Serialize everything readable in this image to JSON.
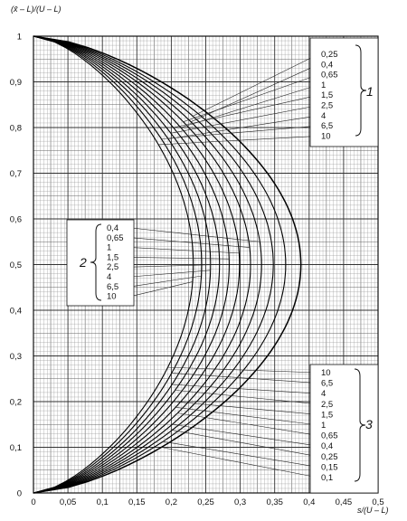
{
  "chart_data": {
    "type": "line",
    "xlabel": "s/(U – L)",
    "ylabel": "(x̄ – L)/(U – L)",
    "xlim": [
      0,
      0.5
    ],
    "ylim": [
      0,
      1
    ],
    "x_ticks": [
      "0",
      "0,05",
      "0,1",
      "0,15",
      "0,2",
      "0,25",
      "0,3",
      "0,35",
      "0,4",
      "0,45",
      "0,5"
    ],
    "y_ticks": [
      "0",
      "0,1",
      "0,2",
      "0,3",
      "0,4",
      "0,5",
      "0,6",
      "0,7",
      "0,8",
      "0,9",
      "1"
    ],
    "grid": true,
    "series": [
      {
        "name": "0,1",
        "peak_x": 0.378
      },
      {
        "name": "0,15",
        "peak_x": 0.356
      },
      {
        "name": "0,25",
        "peak_x": 0.338
      },
      {
        "name": "0,4",
        "peak_x": 0.321
      },
      {
        "name": "0,65",
        "peak_x": 0.305
      },
      {
        "name": "1",
        "peak_x": 0.289
      },
      {
        "name": "1,5",
        "peak_x": 0.274
      },
      {
        "name": "2,5",
        "peak_x": 0.26
      },
      {
        "name": "4",
        "peak_x": 0.247
      },
      {
        "name": "6,5",
        "peak_x": 0.234
      },
      {
        "name": "10",
        "peak_x": 0.222
      }
    ],
    "groups": [
      {
        "number": "1",
        "labels": [
          "0,25",
          "0,4",
          "0,65",
          "1",
          "1,5",
          "2,5",
          "4",
          "6,5",
          "10"
        ]
      },
      {
        "number": "2",
        "labels": [
          "0,4",
          "0,65",
          "1",
          "1,5",
          "2,5",
          "4",
          "6,5",
          "10"
        ]
      },
      {
        "number": "3",
        "labels": [
          "10",
          "6,5",
          "4",
          "2,5",
          "1,5",
          "1",
          "0,65",
          "0,4",
          "0,25",
          "0,15",
          "0,1"
        ]
      }
    ]
  }
}
